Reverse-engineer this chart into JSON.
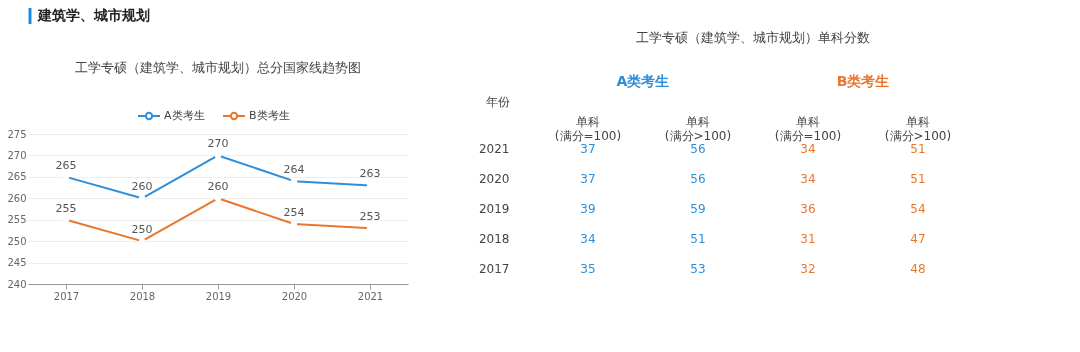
{
  "chart_data": [
    {
      "type": "line",
      "title": "工学专硕（建筑学、城市规划）总分国家线趋势图",
      "annotations": [
        "建筑学、城市规划"
      ],
      "categories": [
        "2017",
        "2018",
        "2019",
        "2020",
        "2021"
      ],
      "series": [
        {
          "name": "A类考生",
          "color": "#2e8fd8",
          "values": [
            265,
            260,
            270,
            264,
            263
          ]
        },
        {
          "name": "B类考生",
          "color": "#e8772e",
          "values": [
            255,
            250,
            260,
            254,
            253
          ]
        }
      ],
      "ylim": [
        240,
        275
      ],
      "yticks": [
        240,
        245,
        250,
        255,
        260,
        265,
        270,
        275
      ],
      "grid": "y",
      "legend": "top",
      "marker": "circle",
      "line_style": "solid",
      "data_labels": true
    },
    {
      "type": "heatmap",
      "title": "工学专硕（建筑学、城市规划）单科分数",
      "ylabel": "年份",
      "annotations": [
        "A类考生",
        "B类考生"
      ],
      "categories": [
        "单科\n(满分=100)",
        "单科\n(满分>100)",
        "单科\n(满分=100)",
        "单科\n(满分>100)"
      ],
      "colors": [
        "#2e8fd8",
        "#2e8fd8",
        "#e8772e",
        "#e8772e"
      ],
      "y_categories": [
        "2021",
        "2020",
        "2019",
        "2018",
        "2017"
      ],
      "cells": [
        [
          37,
          56,
          34,
          51
        ],
        [
          37,
          56,
          34,
          51
        ],
        [
          39,
          59,
          36,
          54
        ],
        [
          34,
          51,
          31,
          47
        ],
        [
          35,
          53,
          32,
          48
        ]
      ],
      "data_labels": true
    }
  ]
}
